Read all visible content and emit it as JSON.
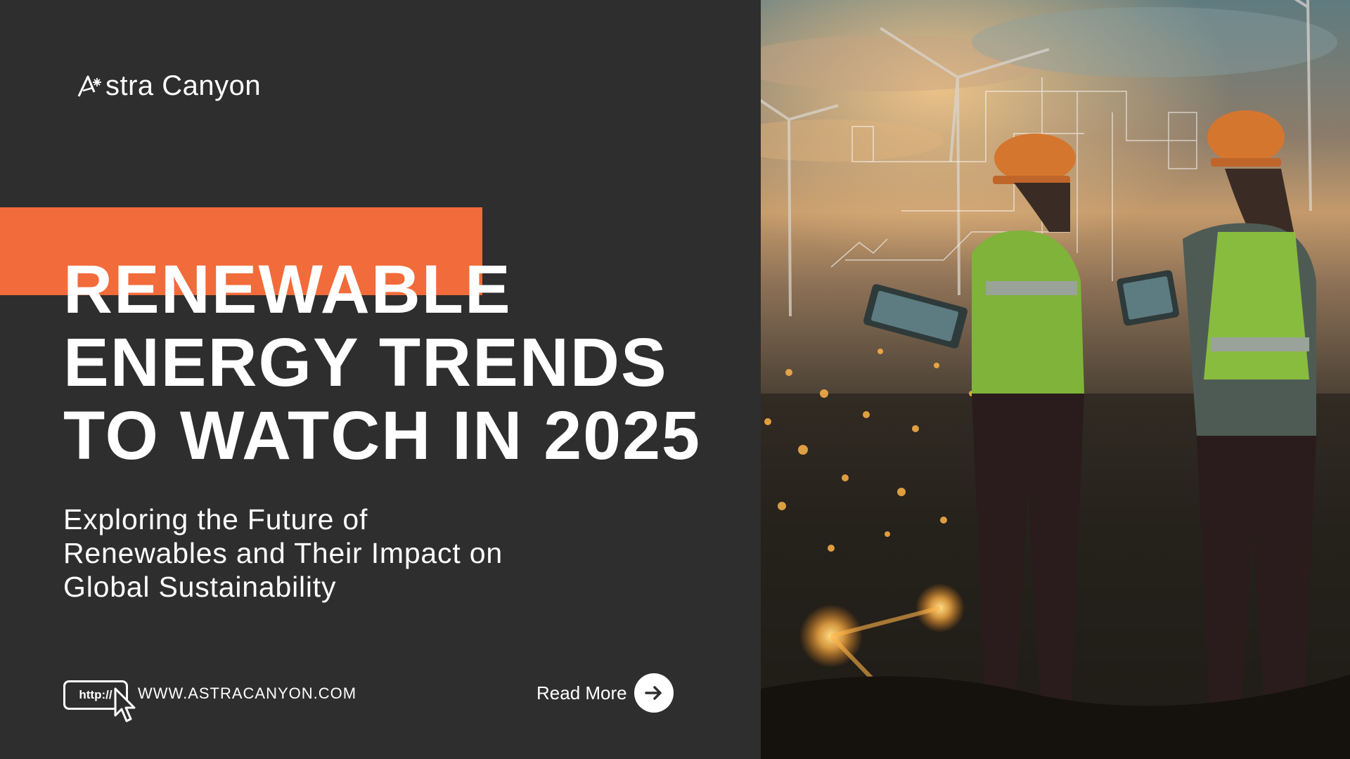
{
  "brand": {
    "logo_text": "stra Canyon",
    "logo_icon": "astra-a-star-icon"
  },
  "headline": {
    "line1": "RENEWABLE",
    "line2": "ENERGY TRENDS",
    "line3": "TO WATCH IN 2025"
  },
  "subtitle": {
    "line1": "Exploring the Future of",
    "line2": "Renewables and Their Impact on",
    "line3": "Global Sustainability"
  },
  "footer": {
    "url_prefix": "http://",
    "website": "WWW.ASTRACANYON.COM",
    "read_more": "Read More",
    "cursor_icon": "cursor-icon",
    "arrow_icon": "arrow-right-icon"
  },
  "colors": {
    "background": "#2e2e2e",
    "accent": "#f26b3a",
    "text": "#ffffff",
    "vest": "#9acd32"
  },
  "photo": {
    "icon": "engineers-wind-farm-photo"
  }
}
